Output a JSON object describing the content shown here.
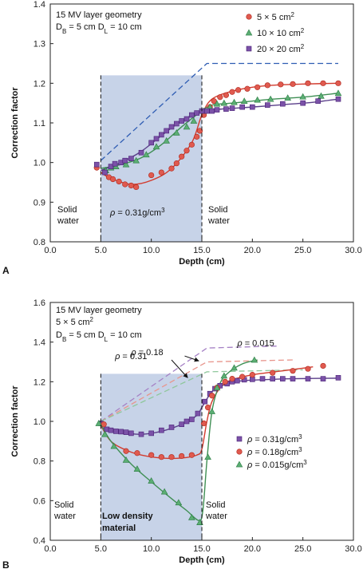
{
  "chart_data": [
    {
      "type": "line",
      "panel_label": "A",
      "annotation_lines": [
        "15 MV layer geometry",
        "D_B = 5 cm D_L = 10 cm"
      ],
      "xlabel": "Depth (cm)",
      "ylabel": "Correction factor",
      "xlim": [
        0,
        30
      ],
      "ylim": [
        0.8,
        1.4
      ],
      "x_ticks": [
        "0.0",
        "5.0",
        "10.0",
        "15.0",
        "20.0",
        "25.0",
        "30.0"
      ],
      "y_ticks": [
        "0.8",
        "0.9",
        "1.0",
        "1.1",
        "1.2",
        "1.3",
        "1.4"
      ],
      "region": {
        "x": [
          5,
          15
        ],
        "fill": "#c7d3e8",
        "label": "ρ = 0.31g/cm3"
      },
      "region_labels": {
        "left": [
          "Solid",
          "water"
        ],
        "right": [
          "Solid",
          "water"
        ]
      },
      "legend": {
        "placement": "top-right"
      },
      "series": [
        {
          "name": "5 × 5 cm2",
          "marker": "circle",
          "color": "#e05a4f",
          "line_color": "#d23b2e",
          "x": [
            4.6,
            5.4,
            5.8,
            6.2,
            6.8,
            7.4,
            8.0,
            8.5,
            10,
            11,
            12,
            12.5,
            13,
            13.5,
            14,
            14.5,
            14.8,
            15.2,
            15.8,
            16.2,
            16.8,
            17.4,
            18,
            18.6,
            19.5,
            20.5,
            21.5,
            22.8,
            24,
            25.5,
            27,
            28.5
          ],
          "y": [
            0.987,
            0.975,
            0.963,
            0.958,
            0.952,
            0.945,
            0.942,
            0.938,
            0.968,
            0.975,
            0.985,
            0.998,
            1.015,
            1.03,
            1.045,
            1.065,
            1.08,
            1.12,
            1.14,
            1.155,
            1.165,
            1.17,
            1.178,
            1.183,
            1.186,
            1.19,
            1.195,
            1.197,
            1.198,
            1.2,
            1.2,
            1.2
          ],
          "curve_x": [
            5,
            6,
            8,
            10,
            12,
            14,
            15,
            16,
            18,
            20,
            22,
            25,
            28.5
          ],
          "curve_y": [
            0.975,
            0.96,
            0.945,
            0.955,
            0.985,
            1.05,
            1.12,
            1.16,
            1.18,
            1.19,
            1.195,
            1.198,
            1.2
          ]
        },
        {
          "name": "10 × 10 cm2",
          "marker": "triangle",
          "color": "#5cae74",
          "line_color": "#3f8f54",
          "x": [
            5.5,
            6,
            6.5,
            7.5,
            8.5,
            9.5,
            10.5,
            11.5,
            12.5,
            13.5,
            14.2,
            15.2,
            15.8,
            16.5,
            17.2,
            18.2,
            19.2,
            20.5,
            21.8,
            23.5,
            25,
            26.8,
            28.5
          ],
          "y": [
            0.98,
            0.987,
            0.99,
            0.995,
            1.005,
            1.02,
            1.04,
            1.055,
            1.075,
            1.09,
            1.105,
            1.13,
            1.14,
            1.148,
            1.15,
            1.152,
            1.155,
            1.158,
            1.16,
            1.163,
            1.166,
            1.168,
            1.175
          ],
          "curve_x": [
            5,
            7,
            9,
            11,
            13,
            15,
            16,
            18,
            20,
            22,
            25,
            28.5
          ],
          "curve_y": [
            0.985,
            0.995,
            1.012,
            1.045,
            1.09,
            1.13,
            1.145,
            1.15,
            1.155,
            1.16,
            1.165,
            1.175
          ]
        },
        {
          "name": "20 × 20 cm2",
          "marker": "square",
          "color": "#7b52a8",
          "line_color": "#5b3f8a",
          "x": [
            4.6,
            5.4,
            6,
            6.4,
            7,
            7.4,
            8,
            9,
            10,
            10.5,
            11,
            11.5,
            12,
            12.5,
            13,
            13.5,
            14,
            14.5,
            15,
            15.5,
            16,
            16.5,
            17.4,
            18,
            19,
            20,
            21.5,
            23,
            25,
            26.5,
            28.5
          ],
          "y": [
            0.995,
            0.975,
            0.99,
            0.997,
            1.0,
            1.005,
            1.01,
            1.025,
            1.05,
            1.06,
            1.07,
            1.08,
            1.09,
            1.098,
            1.105,
            1.11,
            1.12,
            1.125,
            1.13,
            1.13,
            1.13,
            1.133,
            1.135,
            1.137,
            1.14,
            1.14,
            1.145,
            1.148,
            1.15,
            1.155,
            1.16
          ],
          "curve_x": [
            5,
            7,
            9,
            11,
            13,
            15,
            17,
            20,
            23,
            26,
            28.5
          ],
          "curve_y": [
            0.98,
            1.0,
            1.028,
            1.068,
            1.105,
            1.13,
            1.135,
            1.14,
            1.146,
            1.152,
            1.16
          ]
        }
      ],
      "reference_line": {
        "style": "dashed",
        "color": "#2f5db3",
        "x": [
          5,
          15.5,
          28.5
        ],
        "y": [
          1.005,
          1.25,
          1.25
        ]
      },
      "boundary_lines": {
        "x": [
          5,
          15
        ],
        "style": "dashed",
        "color": "#111111"
      }
    },
    {
      "type": "line",
      "panel_label": "B",
      "annotation_lines": [
        "15 MV layer geometry",
        "5 × 5 cm2",
        "D_B = 5 cm D_L = 10 cm"
      ],
      "xlabel": "Depth (cm)",
      "ylabel": "Correction factor",
      "xlim": [
        0,
        30
      ],
      "ylim": [
        0.4,
        1.6
      ],
      "x_ticks": [
        "0.0",
        "5.0",
        "10.0",
        "15.0",
        "20.0",
        "25.0",
        "30.0"
      ],
      "y_ticks": [
        "0.4",
        "0.6",
        "0.8",
        "1.0",
        "1.2",
        "1.4",
        "1.6"
      ],
      "region": {
        "x": [
          5,
          15
        ],
        "fill": "#c7d3e8",
        "label": "Low density material"
      },
      "region_label_lines": [
        "Low density",
        "material"
      ],
      "region_labels": {
        "left": [
          "Solid",
          "water"
        ],
        "right": [
          "Solid",
          "water"
        ]
      },
      "legend": {
        "placement": "center-right"
      },
      "rho_annotations": [
        {
          "text": "ρ = 0.015",
          "x": 18.5,
          "y": 1.38
        },
        {
          "text": "ρ = 0.18",
          "x": 8.0,
          "y": 1.335
        },
        {
          "text": "ρ = 0.31",
          "x": 6.4,
          "y": 1.315
        }
      ],
      "series": [
        {
          "name": "ρ = 0.31g/cm3",
          "marker": "square",
          "color": "#7b52a8",
          "line_color": "#5b3f8a",
          "x": [
            5,
            5.6,
            6,
            6.5,
            7,
            7.5,
            8,
            9,
            10,
            11,
            12,
            13,
            13.5,
            14,
            14.6,
            15.3,
            15.8,
            16.3,
            16.8,
            17.5,
            18,
            18.5,
            19.2,
            20,
            21,
            22,
            23,
            24,
            25.5,
            27,
            28.5
          ],
          "y": [
            0.99,
            0.96,
            0.955,
            0.95,
            0.948,
            0.945,
            0.94,
            0.935,
            0.94,
            0.955,
            0.97,
            0.985,
            1.0,
            1.01,
            1.04,
            1.1,
            1.14,
            1.165,
            1.18,
            1.19,
            1.2,
            1.205,
            1.21,
            1.212,
            1.215,
            1.215,
            1.215,
            1.215,
            1.215,
            1.215,
            1.22
          ],
          "curve_x": [
            5,
            7,
            9,
            11,
            13,
            14.5,
            15,
            16,
            17,
            18,
            19,
            21,
            24,
            28.5
          ],
          "curve_y": [
            0.97,
            0.945,
            0.935,
            0.95,
            0.985,
            1.03,
            1.07,
            1.15,
            1.18,
            1.195,
            1.205,
            1.21,
            1.215,
            1.218
          ]
        },
        {
          "name": "ρ = 0.18g/cm3",
          "marker": "circle",
          "color": "#e05a4f",
          "line_color": "#d23b2e",
          "x": [
            5.3,
            7.5,
            8.6,
            10,
            11,
            12,
            13,
            14,
            15.2,
            15.6,
            16,
            16.5,
            17.3,
            18,
            19,
            20,
            22,
            24,
            25.5,
            27
          ],
          "y": [
            0.985,
            0.85,
            0.84,
            0.83,
            0.82,
            0.82,
            0.825,
            0.83,
            0.99,
            1.07,
            1.13,
            1.17,
            1.2,
            1.215,
            1.225,
            1.235,
            1.245,
            1.255,
            1.265,
            1.28
          ],
          "curve_x": [
            5,
            6,
            7.5,
            9,
            11,
            13,
            14.5,
            15,
            15.5,
            16,
            17,
            18,
            20,
            23,
            26
          ],
          "curve_y": [
            0.98,
            0.9,
            0.855,
            0.83,
            0.815,
            0.815,
            0.83,
            0.86,
            1.0,
            1.1,
            1.18,
            1.21,
            1.235,
            1.255,
            1.275
          ]
        },
        {
          "name": "ρ = 0.015g/cm3",
          "marker": "triangle",
          "color": "#5cae74",
          "line_color": "#3f8f54",
          "x": [
            4.8,
            5.4,
            6.3,
            7.5,
            8.6,
            10,
            11.3,
            12.7,
            14,
            14.8,
            15.6,
            16,
            16.5,
            17.2,
            18.2,
            20.2
          ],
          "y": [
            0.99,
            0.935,
            0.875,
            0.805,
            0.76,
            0.7,
            0.645,
            0.59,
            0.515,
            0.49,
            0.82,
            1.05,
            1.17,
            1.23,
            1.27,
            1.31
          ],
          "curve_x": [
            5,
            6,
            8,
            10,
            12,
            13.5,
            14.7,
            15.1,
            15.5,
            16,
            16.7,
            17.5,
            19,
            20.5
          ],
          "curve_y": [
            0.985,
            0.9,
            0.785,
            0.695,
            0.61,
            0.55,
            0.5,
            0.55,
            0.8,
            1.05,
            1.18,
            1.24,
            1.29,
            1.31
          ]
        }
      ],
      "reference_lines": [
        {
          "name": "ρ = 0.015",
          "style": "dashed",
          "color": "#a47fc4",
          "x": [
            5,
            15.5,
            22.5
          ],
          "y": [
            1.0,
            1.37,
            1.38
          ]
        },
        {
          "name": "ρ = 0.18",
          "style": "dashed",
          "color": "#e8968d",
          "x": [
            5,
            15.5,
            24
          ],
          "y": [
            1.0,
            1.3,
            1.31
          ]
        },
        {
          "name": "ρ = 0.31",
          "style": "dashed",
          "color": "#8fc79c",
          "x": [
            5,
            15.5,
            25
          ],
          "y": [
            1.0,
            1.25,
            1.26
          ]
        }
      ],
      "boundary_lines": {
        "x": [
          5,
          15
        ],
        "style": "dashed",
        "color": "#111111"
      }
    }
  ]
}
